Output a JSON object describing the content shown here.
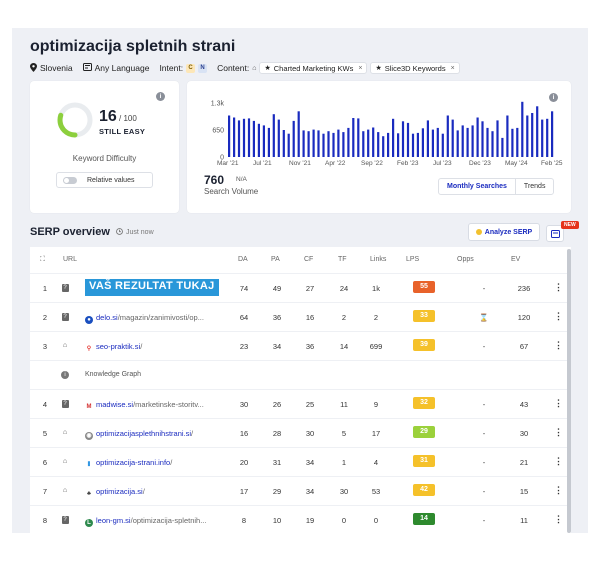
{
  "page": {
    "title": "optimizacija spletnih strani",
    "location": "Slovenia",
    "language": "Any Language",
    "intent_label": "Intent:",
    "intent_badges": [
      "C",
      "N"
    ],
    "content_label": "Content:",
    "chips": [
      "Charted Marketing KWs",
      "Slice3D Keywords"
    ],
    "chip_close": "×"
  },
  "kd": {
    "score": "16",
    "max": "/ 100",
    "label": "STILL EASY",
    "title": "Keyword Difficulty",
    "toggle_label": "Relative values",
    "gauge_fraction": 0.16,
    "color": "#8ccf3d"
  },
  "volume": {
    "value": "760",
    "na": "N/A",
    "label": "Search Volume",
    "tab_monthly": "Monthly Searches",
    "tab_trends": "Trends"
  },
  "chart_data": {
    "type": "bar",
    "y_ticks": [
      "1.3k",
      "650",
      "0"
    ],
    "x_ticks": [
      "Mar '21",
      "Jul '21",
      "Nov '21",
      "Apr '22",
      "Sep '22",
      "Feb '23",
      "Jul '23",
      "Dec '23",
      "May '24",
      "Feb '25"
    ],
    "ylim": [
      0,
      1300
    ],
    "color": "#1a2bbf",
    "values": [
      1000,
      950,
      880,
      920,
      930,
      870,
      800,
      760,
      700,
      1030,
      900,
      650,
      560,
      870,
      1100,
      640,
      620,
      660,
      640,
      560,
      620,
      580,
      660,
      600,
      700,
      940,
      930,
      620,
      660,
      710,
      600,
      500,
      580,
      920,
      570,
      860,
      820,
      560,
      580,
      690,
      880,
      660,
      700,
      560,
      1000,
      900,
      640,
      760,
      700,
      760,
      950,
      860,
      700,
      620,
      880,
      460,
      1000,
      680,
      700,
      1330,
      1000,
      1060,
      1220,
      900,
      920,
      1100
    ]
  },
  "serp": {
    "title": "SERP overview",
    "time": "Just now",
    "analyze_label": "Analyze SERP",
    "new_badge": "NEW",
    "columns": [
      "URL",
      "DA",
      "PA",
      "CF",
      "TF",
      "Links",
      "LPS",
      "Opps",
      "EV"
    ],
    "knowledge_graph": "Knowledge Graph",
    "banner": "VAŠ REZULTAT TUKAJ",
    "rows": [
      {
        "rank": "1",
        "domain": "",
        "path": "",
        "da": "74",
        "pa": "49",
        "cf": "27",
        "tf": "24",
        "links": "1k",
        "lps": "55",
        "opps": "-",
        "ev": "236"
      },
      {
        "rank": "2",
        "domain": "delo.si",
        "path": "/magazin/zanimivosti/op...",
        "da": "64",
        "pa": "36",
        "cf": "16",
        "tf": "2",
        "links": "2",
        "lps": "33",
        "opps": "⌛",
        "ev": "120"
      },
      {
        "rank": "3",
        "domain": "seo-praktik.si",
        "path": "/",
        "da": "23",
        "pa": "34",
        "cf": "36",
        "tf": "14",
        "links": "699",
        "lps": "39",
        "opps": "-",
        "ev": "67"
      },
      {
        "rank": "4",
        "domain": "madwise.si",
        "path": "/marketinske-storitv...",
        "da": "30",
        "pa": "26",
        "cf": "25",
        "tf": "11",
        "links": "9",
        "lps": "32",
        "opps": "-",
        "ev": "43"
      },
      {
        "rank": "5",
        "domain": "optimizacijasplethnihstrani.si",
        "path": "/",
        "da": "16",
        "pa": "28",
        "cf": "30",
        "tf": "5",
        "links": "17",
        "lps": "29",
        "opps": "-",
        "ev": "30"
      },
      {
        "rank": "6",
        "domain": "optimizacija-strani.info",
        "path": "/",
        "da": "20",
        "pa": "31",
        "cf": "34",
        "tf": "1",
        "links": "4",
        "lps": "31",
        "opps": "-",
        "ev": "21"
      },
      {
        "rank": "7",
        "domain": "optimizacija.si",
        "path": "/",
        "da": "17",
        "pa": "29",
        "cf": "34",
        "tf": "30",
        "links": "53",
        "lps": "42",
        "opps": "-",
        "ev": "15"
      },
      {
        "rank": "8",
        "domain": "leon-gm.si",
        "path": "/optimizacija-spletnih...",
        "da": "8",
        "pa": "10",
        "cf": "19",
        "tf": "0",
        "links": "0",
        "lps": "14",
        "opps": "-",
        "ev": "11"
      }
    ],
    "dots": "⋮"
  }
}
